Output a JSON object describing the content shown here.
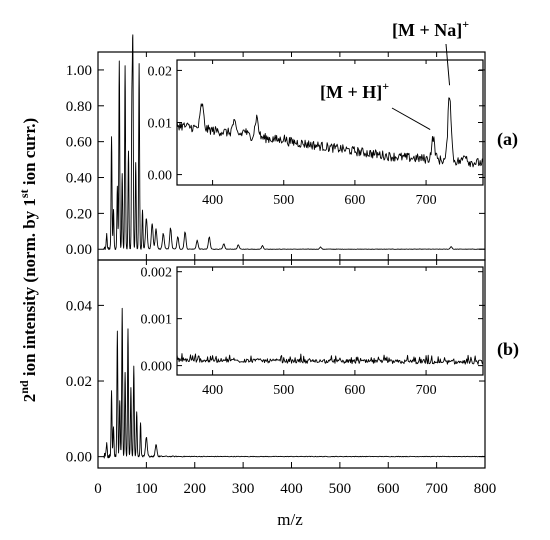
{
  "chart_data": [
    {
      "type": "line",
      "panel_label": "(a)",
      "xlabel": "m/z",
      "ylabel": "2nd ion intensity (norm. by 1st ion curr.)",
      "xlim": [
        0,
        800
      ],
      "ylim": [
        -0.06,
        1.1
      ],
      "xticks": [
        0,
        100,
        200,
        300,
        400,
        500,
        600,
        700,
        800
      ],
      "yticks": [
        0.0,
        0.2,
        0.4,
        0.6,
        0.8,
        1.0
      ],
      "ytick_labels": [
        "0.00",
        "0.20",
        "0.40",
        "0.60",
        "0.80",
        "1.00"
      ],
      "peaks": [
        {
          "x": 18,
          "y": 0.08
        },
        {
          "x": 28,
          "y": 0.63
        },
        {
          "x": 32,
          "y": 0.22
        },
        {
          "x": 40,
          "y": 0.35
        },
        {
          "x": 44,
          "y": 1.05
        },
        {
          "x": 50,
          "y": 0.42
        },
        {
          "x": 56,
          "y": 1.02
        },
        {
          "x": 63,
          "y": 0.55
        },
        {
          "x": 70,
          "y": 0.78
        },
        {
          "x": 72,
          "y": 1.12
        },
        {
          "x": 78,
          "y": 0.48
        },
        {
          "x": 85,
          "y": 1.03
        },
        {
          "x": 92,
          "y": 0.22
        },
        {
          "x": 100,
          "y": 0.17
        },
        {
          "x": 112,
          "y": 0.14
        },
        {
          "x": 120,
          "y": 0.11
        },
        {
          "x": 135,
          "y": 0.09
        },
        {
          "x": 150,
          "y": 0.12
        },
        {
          "x": 165,
          "y": 0.07
        },
        {
          "x": 180,
          "y": 0.1
        },
        {
          "x": 205,
          "y": 0.05
        },
        {
          "x": 230,
          "y": 0.07
        },
        {
          "x": 260,
          "y": 0.03
        },
        {
          "x": 290,
          "y": 0.025
        },
        {
          "x": 340,
          "y": 0.02
        },
        {
          "x": 460,
          "y": 0.012
        },
        {
          "x": 730,
          "y": 0.015
        }
      ],
      "inset": {
        "xlim": [
          350,
          780
        ],
        "ylim": [
          -0.002,
          0.022
        ],
        "xticks": [
          400,
          500,
          600,
          700
        ],
        "yticks": [
          0.0,
          0.01,
          0.02
        ],
        "ytick_labels": [
          "0.00",
          "0.01",
          "0.02"
        ],
        "baseline": [
          [
            350,
            0.0095
          ],
          [
            450,
            0.0075
          ],
          [
            550,
            0.0055
          ],
          [
            650,
            0.0035
          ],
          [
            700,
            0.003
          ],
          [
            780,
            0.0022
          ]
        ],
        "peaks": [
          {
            "x": 385,
            "y": 0.0135
          },
          {
            "x": 430,
            "y": 0.01
          },
          {
            "x": 445,
            "y": 0.0085
          },
          {
            "x": 462,
            "y": 0.011
          },
          {
            "x": 500,
            "y": 0.007
          },
          {
            "x": 578,
            "y": 0.005
          },
          {
            "x": 710,
            "y": 0.007
          },
          {
            "x": 733,
            "y": 0.0155
          },
          {
            "x": 755,
            "y": 0.004
          }
        ],
        "annotations": [
          {
            "text_main": "[M + H]",
            "sup": "+",
            "target_x": 710,
            "target_y": 0.0075
          },
          {
            "text_main": "[M + Na]",
            "sup": "+",
            "target_x": 733,
            "target_y": 0.016
          }
        ]
      }
    },
    {
      "type": "line",
      "panel_label": "(b)",
      "xlim": [
        0,
        800
      ],
      "ylim": [
        -0.003,
        0.052
      ],
      "xticks": [
        0,
        100,
        200,
        300,
        400,
        500,
        600,
        700,
        800
      ],
      "yticks": [
        0.0,
        0.02,
        0.04
      ],
      "ytick_labels": [
        "0.00",
        "0.02",
        "0.04"
      ],
      "peaks": [
        {
          "x": 18,
          "y": 0.003
        },
        {
          "x": 28,
          "y": 0.017
        },
        {
          "x": 32,
          "y": 0.008
        },
        {
          "x": 40,
          "y": 0.033
        },
        {
          "x": 45,
          "y": 0.015
        },
        {
          "x": 50,
          "y": 0.039
        },
        {
          "x": 56,
          "y": 0.022
        },
        {
          "x": 62,
          "y": 0.034
        },
        {
          "x": 68,
          "y": 0.018
        },
        {
          "x": 74,
          "y": 0.024
        },
        {
          "x": 80,
          "y": 0.012
        },
        {
          "x": 88,
          "y": 0.009
        },
        {
          "x": 100,
          "y": 0.005
        },
        {
          "x": 120,
          "y": 0.003
        }
      ],
      "inset": {
        "xlim": [
          350,
          780
        ],
        "ylim": [
          -0.0002,
          0.0021
        ],
        "xticks": [
          400,
          500,
          600,
          700
        ],
        "yticks": [
          0.0,
          0.001,
          0.002
        ],
        "ytick_labels": [
          "0.000",
          "0.001",
          "0.002"
        ],
        "baseline": [
          [
            350,
            0.00012
          ],
          [
            550,
            9e-05
          ],
          [
            780,
            7e-05
          ]
        ],
        "peaks": []
      }
    }
  ],
  "axis_ticks_x": [
    "0",
    "100",
    "200",
    "300",
    "400",
    "500",
    "600",
    "700",
    "800"
  ],
  "inset_ticks_x": [
    "400",
    "500",
    "600",
    "700"
  ],
  "ylabel_parts": {
    "n1": "2",
    "s1": "nd",
    "mid": " ion intensity (norm. by 1",
    "s2": "st",
    "end": " ion curr.)"
  },
  "xlabel": "m/z"
}
